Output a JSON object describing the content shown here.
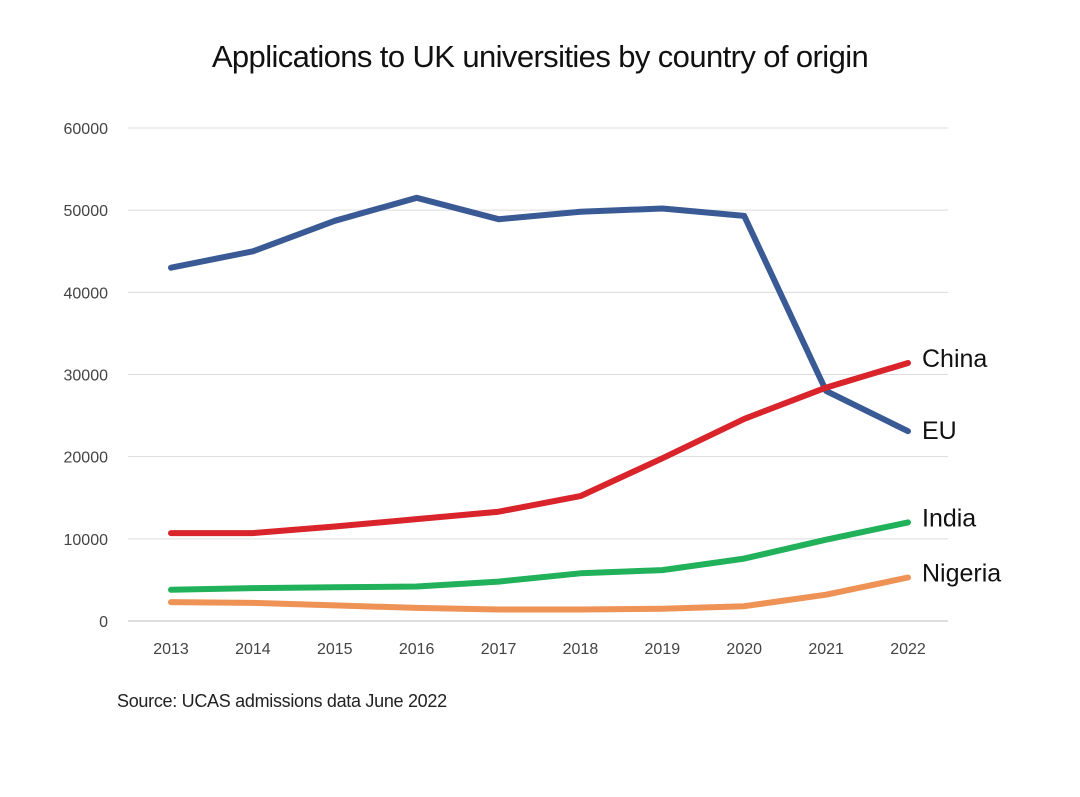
{
  "source_text": "Source: UCAS admissions data June 2022",
  "chart_data": {
    "type": "line",
    "title": "Applications to UK universities by country of origin",
    "xlabel": "",
    "ylabel": "",
    "x": [
      "2013",
      "2014",
      "2015",
      "2016",
      "2017",
      "2018",
      "2019",
      "2020",
      "2021",
      "2022"
    ],
    "ylim": [
      0,
      60000
    ],
    "yticks": [
      "0",
      "10000",
      "20000",
      "30000",
      "40000",
      "50000",
      "60000"
    ],
    "grid": true,
    "legend": "direct labels at line ends",
    "series": [
      {
        "name": "EU",
        "color": "#3a5a95",
        "values": [
          43000,
          45000,
          48700,
          51500,
          48900,
          49800,
          50200,
          49300,
          28000,
          23100
        ]
      },
      {
        "name": "China",
        "color": "#d9242b",
        "values": [
          10700,
          10700,
          11500,
          12400,
          13300,
          15200,
          19800,
          24600,
          28400,
          31400
        ]
      },
      {
        "name": "India",
        "color": "#20b15a",
        "values": [
          3800,
          4000,
          4100,
          4200,
          4800,
          5800,
          6200,
          7600,
          9900,
          12000
        ]
      },
      {
        "name": "Nigeria",
        "color": "#ee9256",
        "values": [
          2300,
          2200,
          1900,
          1600,
          1400,
          1400,
          1500,
          1800,
          3200,
          5300
        ]
      }
    ]
  }
}
